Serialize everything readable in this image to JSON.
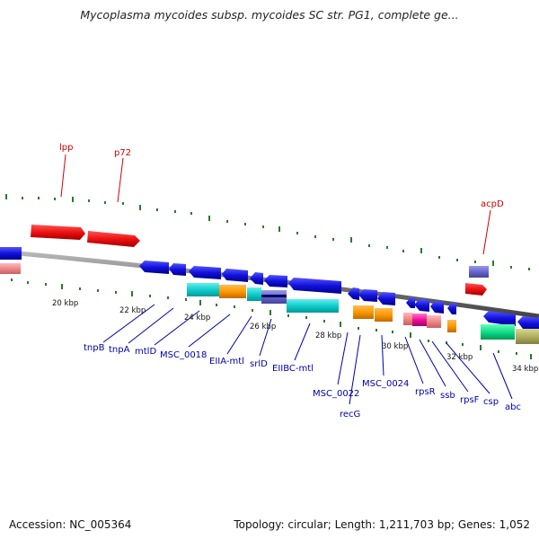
{
  "title": "Mycoplasma mycoides subsp. mycoides SC str. PG1, complete ge...",
  "footer": {
    "accession": "Accession: NC_005364",
    "summary": "Topology: circular; Length: 1,211,703 bp; Genes: 1,052"
  },
  "scale_labels": [
    "20 kbp",
    "22 kbp",
    "24 kbp",
    "26 kbp",
    "28 kbp",
    "30 kbp",
    "32 kbp",
    "34 kbp"
  ],
  "top_gene_labels": [
    "lpp",
    "p72",
    "acpD"
  ],
  "bottom_gene_labels": [
    "tnpB",
    "tnpA",
    "mtlD",
    "MSC_0018",
    "EIIA-mtl",
    "srlD",
    "EIIBC-mtl",
    "MSC_0022",
    "recG",
    "MSC_0024",
    "rpsR",
    "ssb",
    "rpsF",
    "csp",
    "abc"
  ],
  "colors": {
    "forward_gene": "#ee1111",
    "reverse_gene": "#1111dd",
    "tick": "#2a7a2a",
    "label": "#0000aa",
    "top_label": "#cc0000",
    "backbone": "#808080"
  }
}
